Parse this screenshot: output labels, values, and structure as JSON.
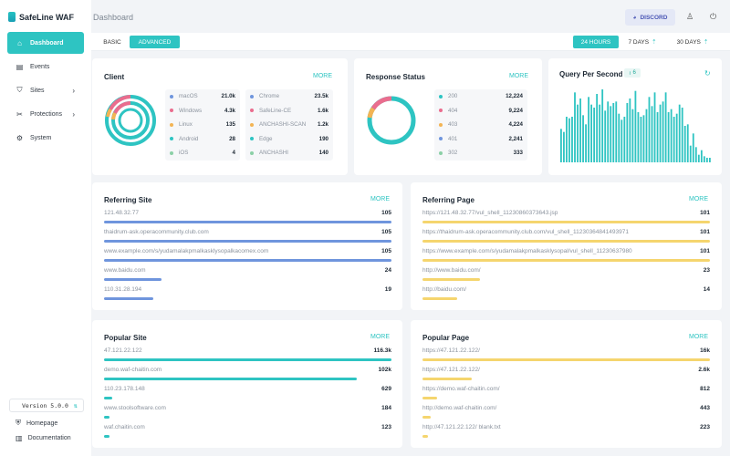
{
  "app": {
    "name": "SafeLine WAF",
    "version": "Version 5.0.0"
  },
  "sidebar": {
    "items": [
      {
        "label": "Dashboard",
        "icon": "home-icon",
        "active": true
      },
      {
        "label": "Events",
        "icon": "document-icon",
        "active": false
      },
      {
        "label": "Sites",
        "icon": "shield-icon",
        "active": false,
        "has_submenu": true
      },
      {
        "label": "Protections",
        "icon": "wrench-icon",
        "active": false,
        "has_submenu": true
      },
      {
        "label": "System",
        "icon": "gear-icon",
        "active": false
      }
    ],
    "bottom": [
      {
        "label": "Homepage",
        "icon": "shield-check-icon"
      },
      {
        "label": "Documentation",
        "icon": "book-icon"
      }
    ]
  },
  "header": {
    "title": "Dashboard",
    "discord_label": "DISCORD"
  },
  "modes": {
    "basic": "BASIC",
    "advanced": "ADVANCED",
    "active": "ADVANCED"
  },
  "ranges": {
    "items": [
      "24 HOURS",
      "7 DAYS",
      "30 DAYS"
    ],
    "active": "24 HOURS"
  },
  "colors": {
    "accent": "#2ec4c2",
    "blue": "#6f95dd",
    "yellow": "#f5d56e",
    "pink": "#ea6d8e",
    "orange": "#f3b454",
    "green_light": "#8bd0a6"
  },
  "client": {
    "title": "Client",
    "more": "MORE",
    "left": [
      {
        "label": "macOS",
        "value": "21.0k",
        "color": "#6f95dd"
      },
      {
        "label": "Windows",
        "value": "4.3k",
        "color": "#ea6d8e"
      },
      {
        "label": "Linux",
        "value": "135",
        "color": "#f3b454"
      },
      {
        "label": "Android",
        "value": "28",
        "color": "#2ec4c2"
      },
      {
        "label": "iOS",
        "value": "4",
        "color": "#8bd0a6"
      }
    ],
    "right": [
      {
        "label": "Chrome",
        "value": "23.5k",
        "color": "#6f95dd"
      },
      {
        "label": "SafeLine-CE",
        "value": "1.6k",
        "color": "#ea6d8e"
      },
      {
        "label": "ANCHASHI-SCAN",
        "value": "1.2k",
        "color": "#f3b454"
      },
      {
        "label": "Edge",
        "value": "190",
        "color": "#2ec4c2"
      },
      {
        "label": "ANCHASHI",
        "value": "140",
        "color": "#8bd0a6"
      }
    ]
  },
  "response": {
    "title": "Response Status",
    "more": "MORE",
    "items": [
      {
        "label": "200",
        "value": "12,224",
        "color": "#2ec4c2"
      },
      {
        "label": "404",
        "value": "9,224",
        "color": "#ea6d8e"
      },
      {
        "label": "403",
        "value": "4,224",
        "color": "#f3b454"
      },
      {
        "label": "401",
        "value": "2,241",
        "color": "#6f95dd"
      },
      {
        "label": "302",
        "value": "333",
        "color": "#8bd0a6"
      }
    ]
  },
  "qps": {
    "title": "Query Per Second",
    "badge": "6",
    "bars": [
      22,
      20,
      30,
      29,
      30,
      46,
      38,
      42,
      31,
      25,
      43,
      38,
      36,
      45,
      38,
      48,
      34,
      40,
      37,
      39,
      40,
      32,
      28,
      30,
      39,
      42,
      35,
      47,
      33,
      30,
      31,
      35,
      43,
      37,
      46,
      33,
      38,
      40,
      46,
      33,
      35,
      30,
      32,
      38,
      36,
      24,
      25,
      11,
      19,
      10,
      5,
      8,
      4,
      3,
      3
    ]
  },
  "referring_site": {
    "title": "Referring Site",
    "more": "MORE",
    "rows": [
      {
        "label": "121.48.32.77",
        "value": "105",
        "pct": 1.0
      },
      {
        "label": "thaidrum-ask.operacommunity.club.com",
        "value": "105",
        "pct": 1.0
      },
      {
        "label": "www.example.com/s/yudamalakpmalkasklysopalkacomex.com",
        "value": "105",
        "pct": 1.0
      },
      {
        "label": "www.baidu.com",
        "value": "24",
        "pct": 0.2
      },
      {
        "label": "110.31.28.194",
        "value": "19",
        "pct": 0.17
      }
    ]
  },
  "referring_page": {
    "title": "Referring Page",
    "more": "MORE",
    "rows": [
      {
        "label": "https://121.48.32.77/vul_shell_11230860373643.jsp",
        "value": "101",
        "pct": 1.0
      },
      {
        "label": "https://thaidrum-ask.operacommunity.club.com/vul_shell_11230364841493971",
        "value": "101",
        "pct": 1.0
      },
      {
        "label": "https://www.example.com/s/yudamalakpmalkasklysopal/vul_shell_11230637980",
        "value": "101",
        "pct": 1.0
      },
      {
        "label": "http://www.baidu.com/",
        "value": "23",
        "pct": 0.2
      },
      {
        "label": "http://baidu.com/",
        "value": "14",
        "pct": 0.12
      }
    ]
  },
  "popular_site": {
    "title": "Popular Site",
    "more": "MORE",
    "rows": [
      {
        "label": "47.121.22.122",
        "value": "116.3k",
        "pct": 1.0
      },
      {
        "label": "demo.waf-chaitin.com",
        "value": "102k",
        "pct": 0.88
      },
      {
        "label": "110.23.178.148",
        "value": "629",
        "pct": 0.03
      },
      {
        "label": "www.stoolsoftware.com",
        "value": "184",
        "pct": 0.02
      },
      {
        "label": "waf.chaitin.com",
        "value": "123",
        "pct": 0.01
      }
    ]
  },
  "popular_page": {
    "title": "Popular Page",
    "more": "MORE",
    "rows": [
      {
        "label": "https://47.121.22.122/",
        "value": "16k",
        "pct": 1.0
      },
      {
        "label": "https://47.121.22.122/",
        "value": "2.6k",
        "pct": 0.17
      },
      {
        "label": "https://demo.waf-chaitin.com/",
        "value": "812",
        "pct": 0.05
      },
      {
        "label": "http://demo.waf-chaitin.com/",
        "value": "443",
        "pct": 0.03
      },
      {
        "label": "http://47.121.22.122/ blank.txt",
        "value": "223",
        "pct": 0.02
      }
    ]
  }
}
